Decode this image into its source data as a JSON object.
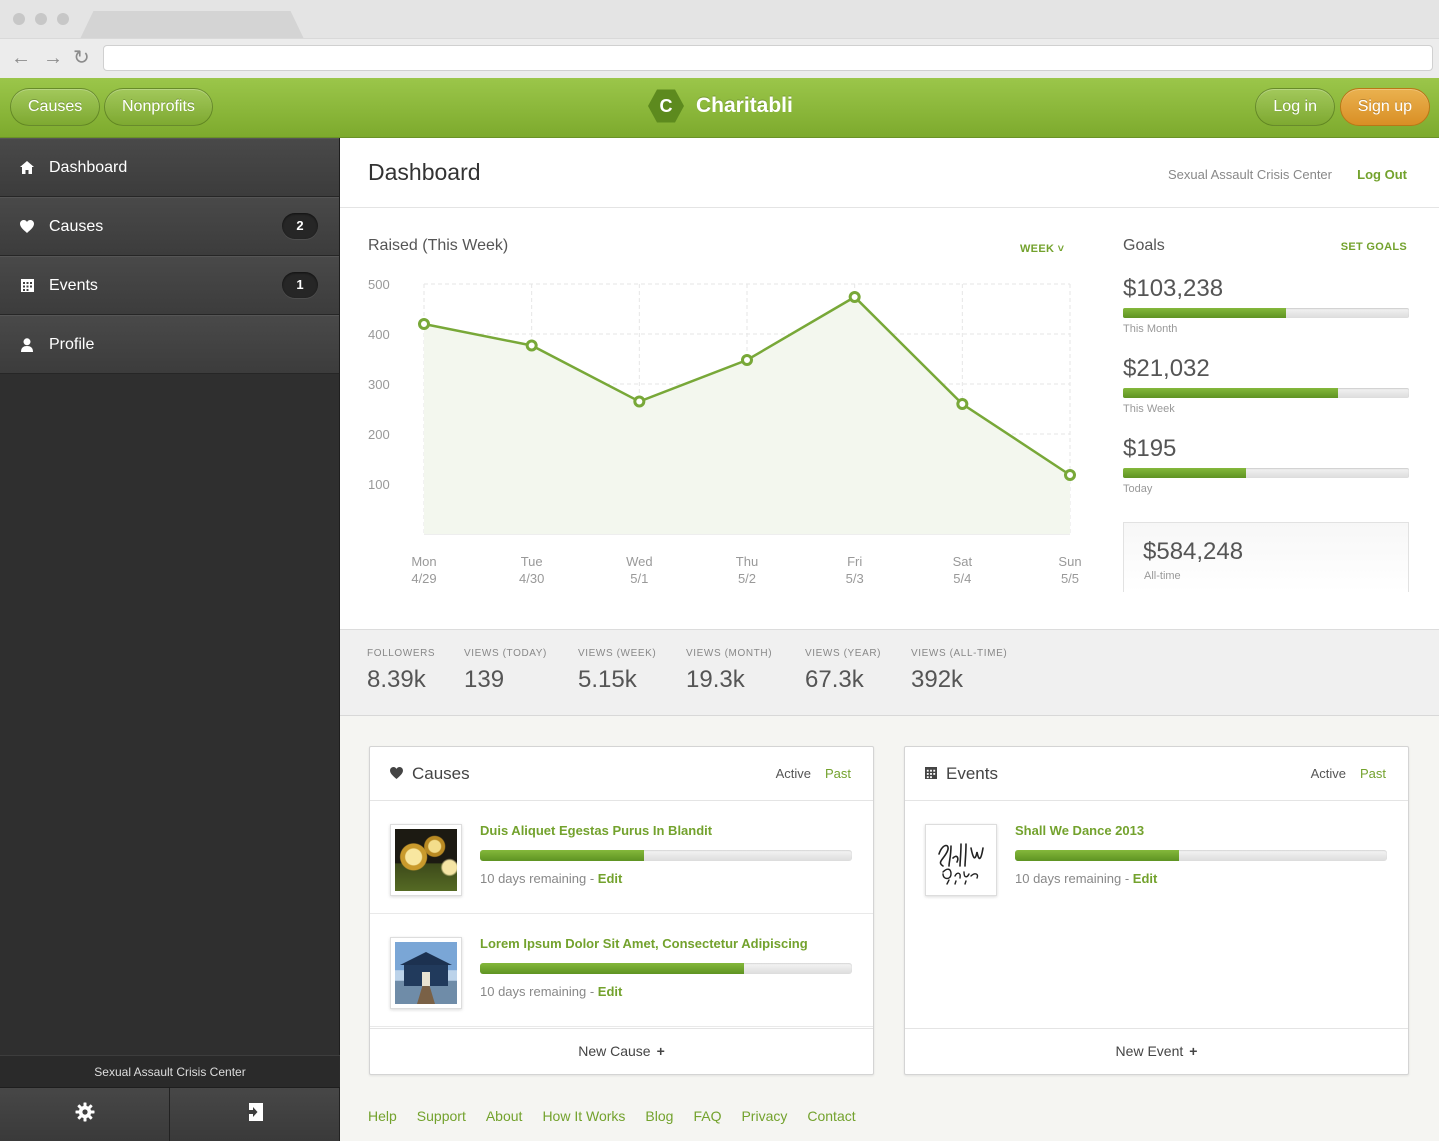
{
  "app": {
    "brand": "Charitabli",
    "logo_letter": "C",
    "nav": {
      "causes": "Causes",
      "nonprofits": "Nonprofits",
      "login": "Log in",
      "signup": "Sign up"
    }
  },
  "sidebar": {
    "items": [
      {
        "label": "Dashboard",
        "icon": "home-icon"
      },
      {
        "label": "Causes",
        "icon": "heart-icon",
        "badge": "2"
      },
      {
        "label": "Events",
        "icon": "calendar-icon",
        "badge": "1"
      },
      {
        "label": "Profile",
        "icon": "user-icon"
      }
    ],
    "org": "Sexual Assault Crisis Center"
  },
  "header": {
    "title": "Dashboard",
    "org": "Sexual Assault Crisis Center",
    "logout": "Log Out"
  },
  "chart_data": {
    "type": "line",
    "title": "Raised (This Week)",
    "period_selector": "WEEK",
    "categories": [
      {
        "day": "Mon",
        "date": "4/29"
      },
      {
        "day": "Tue",
        "date": "4/30"
      },
      {
        "day": "Wed",
        "date": "5/1"
      },
      {
        "day": "Thu",
        "date": "5/2"
      },
      {
        "day": "Fri",
        "date": "5/3"
      },
      {
        "day": "Sat",
        "date": "5/4"
      },
      {
        "day": "Sun",
        "date": "5/5"
      }
    ],
    "values": [
      420,
      377,
      265,
      348,
      474,
      260,
      118
    ],
    "yticks": [
      500,
      400,
      300,
      200,
      100
    ],
    "ylim": [
      0,
      500
    ],
    "grid": true,
    "colors": {
      "line": "#78a838",
      "area": "#f3f7ee"
    }
  },
  "goals": {
    "title": "Goals",
    "action": "SET GOALS",
    "items": [
      {
        "amount": "$103,238",
        "label": "This Month",
        "progress": 0.57
      },
      {
        "amount": "$21,032",
        "label": "This Week",
        "progress": 0.75
      },
      {
        "amount": "$195",
        "label": "Today",
        "progress": 0.43
      }
    ],
    "alltime": {
      "amount": "$584,248",
      "label": "All-time"
    }
  },
  "stats": [
    {
      "label": "FOLLOWERS",
      "value": "8.39k"
    },
    {
      "label": "VIEWS (TODAY)",
      "value": "139"
    },
    {
      "label": "VIEWS (WEEK)",
      "value": "5.15k"
    },
    {
      "label": "VIEWS (MONTH)",
      "value": "19.3k"
    },
    {
      "label": "VIEWS (YEAR)",
      "value": "67.3k"
    },
    {
      "label": "VIEWS (ALL-TIME)",
      "value": "392k"
    }
  ],
  "causes_card": {
    "title": "Causes",
    "tab_active": "Active",
    "tab_past": "Past",
    "entries": [
      {
        "name": "Duis Aliquet Egestas Purus In Blandit",
        "progress": 0.44,
        "remaining": "10 days remaining - ",
        "edit": "Edit"
      },
      {
        "name": "Lorem Ipsum Dolor Sit Amet, Consectetur Adipiscing",
        "progress": 0.71,
        "remaining": "10 days remaining - ",
        "edit": "Edit"
      }
    ],
    "footer": "New Cause"
  },
  "events_card": {
    "title": "Events",
    "tab_active": "Active",
    "tab_past": "Past",
    "entries": [
      {
        "name": "Shall We Dance 2013",
        "progress": 0.44,
        "remaining": "10 days remaining - ",
        "edit": "Edit"
      }
    ],
    "footer": "New Event"
  },
  "footer_links": [
    "Help",
    "Support",
    "About",
    "How It Works",
    "Blog",
    "FAQ",
    "Privacy",
    "Contact"
  ]
}
